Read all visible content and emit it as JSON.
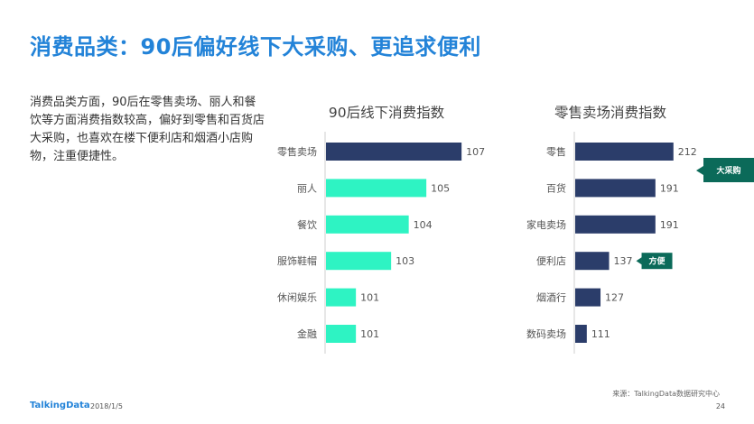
{
  "slide": {
    "title": "消费品类：90后偏好线下大采购、更追求便利",
    "description": "消费品类方面，90后在零售卖场、丽人和餐饮等方面消费指数较高，偏好到零售和百货店大采购，也喜欢在楼下便利店和烟酒小店购物，注重便捷性。",
    "source": "来源：TalkingData数据研究中心",
    "logo": "TalkingData",
    "date": "2018/1/5",
    "page_number": "24"
  },
  "colors": {
    "title": "#2383d8",
    "navy_bar": "#2b3d6a",
    "mint_bar": "#2ef3c3",
    "callout": "#0b6a59",
    "axis": "#cfcfcf",
    "label": "#555555"
  },
  "chart_data": [
    {
      "type": "bar",
      "orientation": "horizontal",
      "title": "90后线下消费指数",
      "categories": [
        "零售卖场",
        "丽人",
        "餐饮",
        "服饰鞋帽",
        "休闲娱乐",
        "金融"
      ],
      "values": [
        107,
        105,
        104,
        103,
        101,
        101
      ],
      "bar_colors": [
        "#2b3d6a",
        "#2ef3c3",
        "#2ef3c3",
        "#2ef3c3",
        "#2ef3c3",
        "#2ef3c3"
      ],
      "data_labels": true,
      "grid": false,
      "legend": "none"
    },
    {
      "type": "bar",
      "orientation": "horizontal",
      "title": "零售卖场消费指数",
      "categories": [
        "零售",
        "百货",
        "家电卖场",
        "便利店",
        "烟酒行",
        "数码卖场"
      ],
      "values": [
        212,
        191,
        191,
        137,
        127,
        111
      ],
      "bar_colors": [
        "#2b3d6a",
        "#2b3d6a",
        "#2b3d6a",
        "#2b3d6a",
        "#2b3d6a",
        "#2b3d6a"
      ],
      "data_labels": true,
      "grid": false,
      "legend": "none",
      "annotations": [
        {
          "text": "大采购",
          "category": "零售"
        },
        {
          "text": "方便",
          "category": "便利店"
        }
      ]
    }
  ]
}
